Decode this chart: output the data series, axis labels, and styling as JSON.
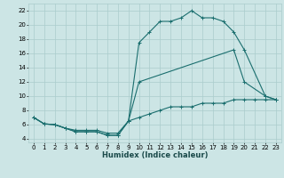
{
  "xlabel": "Humidex (Indice chaleur)",
  "background_color": "#cce5e5",
  "grid_color": "#aacccc",
  "line_color": "#1a6e6e",
  "xlim": [
    -0.5,
    23.5
  ],
  "ylim": [
    3.5,
    23
  ],
  "xticks": [
    0,
    1,
    2,
    3,
    4,
    5,
    6,
    7,
    8,
    9,
    10,
    11,
    12,
    13,
    14,
    15,
    16,
    17,
    18,
    19,
    20,
    21,
    22,
    23
  ],
  "yticks": [
    4,
    6,
    8,
    10,
    12,
    14,
    16,
    18,
    20,
    22
  ],
  "series": [
    {
      "x": [
        0,
        1,
        2,
        3,
        4,
        5,
        6,
        7,
        8,
        9,
        10,
        11,
        12,
        13,
        14,
        15,
        16,
        17,
        18,
        19,
        20,
        22,
        23
      ],
      "y": [
        7,
        6.1,
        6,
        5.5,
        5,
        5,
        5,
        4.5,
        4.5,
        6.5,
        17.5,
        19,
        20.5,
        20.5,
        21,
        22,
        21,
        21,
        20.5,
        19,
        16.5,
        10,
        9.5
      ]
    },
    {
      "x": [
        0,
        1,
        2,
        3,
        4,
        5,
        6,
        7,
        8,
        9,
        10,
        19,
        20,
        22,
        23
      ],
      "y": [
        7,
        6.1,
        6,
        5.5,
        5,
        5,
        5,
        4.5,
        4.5,
        6.5,
        12,
        16.5,
        12,
        10,
        9.5
      ]
    },
    {
      "x": [
        0,
        1,
        2,
        3,
        4,
        5,
        6,
        7,
        8,
        9,
        10,
        11,
        12,
        13,
        14,
        15,
        16,
        17,
        18,
        19,
        20,
        21,
        22,
        23
      ],
      "y": [
        7,
        6.1,
        6,
        5.5,
        5.2,
        5.2,
        5.2,
        4.8,
        4.8,
        6.5,
        7,
        7.5,
        8,
        8.5,
        8.5,
        8.5,
        9,
        9,
        9,
        9.5,
        9.5,
        9.5,
        9.5,
        9.5
      ]
    }
  ],
  "tick_fontsize": 5,
  "xlabel_fontsize": 6,
  "xlabel_color": "#1a4a4a"
}
